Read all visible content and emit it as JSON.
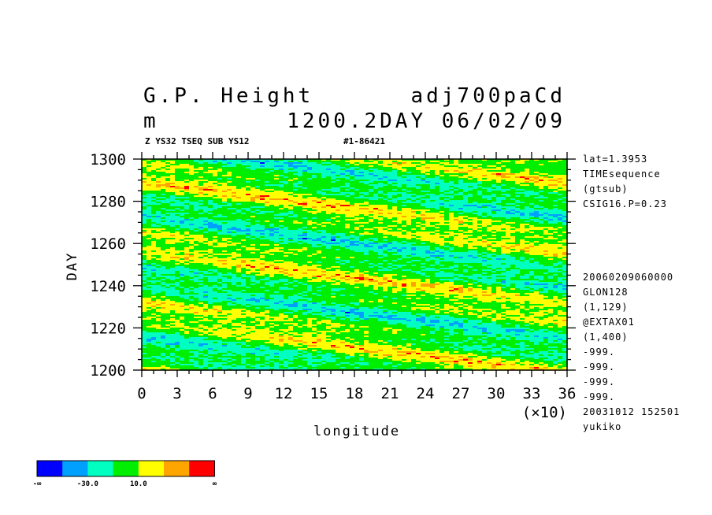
{
  "header": {
    "variable": "G.P. Height",
    "dataset": "adj700paCd",
    "unit": "m",
    "time": "1200.2DAY 06/02/09",
    "sub_left": "Z YS32 TSEQ SUB YS12",
    "sub_right": "#1-86421"
  },
  "side_info": {
    "top": [
      "lat=1.3953",
      "TIMEsequence",
      "(gtsub)",
      "CSIG16.P=0.23"
    ],
    "bottom": [
      "20060209060000",
      "GLON128",
      "(1,129)",
      "@EXTAX01",
      "(1,400)",
      "-999.",
      "-999.",
      "-999.",
      "-999.",
      "20031012 152501",
      "yukiko"
    ]
  },
  "chart_data": {
    "type": "heatmap",
    "xlabel": "longitude",
    "ylabel": "DAY",
    "x_multiplier_label": "(×10)",
    "xlim": [
      0,
      36
    ],
    "ylim": [
      1200,
      1300
    ],
    "x_ticks": [
      "0",
      "3",
      "6",
      "9",
      "12",
      "15",
      "18",
      "21",
      "24",
      "27",
      "30",
      "33",
      "36"
    ],
    "y_ticks": [
      "1200",
      "1220",
      "1240",
      "1260",
      "1280",
      "1300"
    ],
    "colorbar": {
      "colors": [
        "#0000ff",
        "#00a0ff",
        "#00ffc0",
        "#00ee00",
        "#ffff00",
        "#ffa500",
        "#ff0000"
      ],
      "labels": [
        "-∞",
        "-30.0",
        "10.0",
        "∞"
      ]
    }
  }
}
